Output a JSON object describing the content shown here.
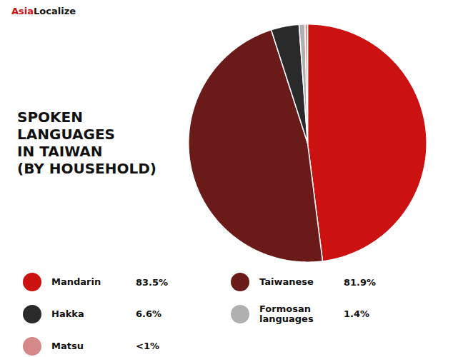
{
  "chart_data": {
    "type": "pie",
    "title": "SPOKEN\nLANGUAGES\nIN TAIWAN\n(BY HOUSEHOLD)",
    "categories": [
      "Mandarin",
      "Taiwanese",
      "Hakka",
      "Formosan\nlanguages",
      "Matsu"
    ],
    "values": [
      83.5,
      81.9,
      6.6,
      1.4,
      0.6
    ],
    "value_labels": [
      "83.5%",
      "81.9%",
      "6.6%",
      "1.4%",
      "<1%"
    ],
    "colors": [
      "#cc1111",
      "#6b1a1a",
      "#2a2a2a",
      "#b0b0b0",
      "#d48888"
    ],
    "legend": "bottom",
    "annotations": [
      {
        "text": "Asia",
        "color": "#cc1111"
      },
      {
        "text": "Localize",
        "color": "#111111"
      }
    ]
  }
}
